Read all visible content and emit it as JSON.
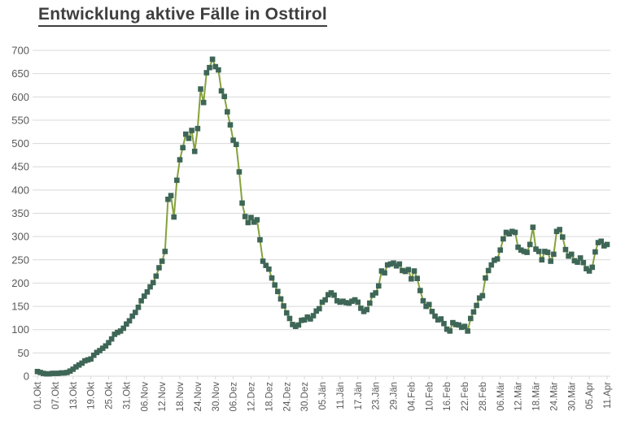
{
  "title": "Entwicklung aktive Fälle in Osttirol",
  "chart_data": {
    "type": "line",
    "title": "Entwicklung aktive Fälle in Osttirol",
    "series_name": "aktive Fälle",
    "legend": "none",
    "grid": "horizontal",
    "marker": "square",
    "line_color": "#85A23B",
    "marker_color": "#3E6657",
    "grid_color": "#D9D9D9",
    "axis_text_color": "#595959",
    "title_color": "#3f3f3f",
    "ylim": [
      0,
      700
    ],
    "y_tick_labels": [
      "0",
      "50",
      "100",
      "150",
      "200",
      "250",
      "300",
      "350",
      "400",
      "450",
      "500",
      "550",
      "600",
      "650",
      "700"
    ],
    "x_tick_step_days": 6,
    "x_tick_labels": [
      "01.Okt",
      "07.Okt",
      "13.Okt",
      "19.Okt",
      "25.Okt",
      "31.Okt",
      "06.Nov",
      "12.Nov",
      "18.Nov",
      "24.Nov",
      "30.Nov",
      "06.Dez",
      "12.Dez",
      "18.Dez",
      "24.Dez",
      "30.Dez",
      "05.Jän",
      "11.Jän",
      "17.Jän",
      "23.Jän",
      "29.Jän",
      "04.Feb",
      "10.Feb",
      "16.Feb",
      "22.Feb",
      "28.Feb",
      "06.Mär",
      "12.Mär",
      "18.Mär",
      "24.Mär",
      "30.Mär",
      "05.Apr",
      "11.Apr"
    ],
    "values": [
      10,
      8,
      6,
      5,
      5,
      6,
      6,
      6,
      7,
      7,
      8,
      11,
      15,
      20,
      24,
      28,
      33,
      35,
      37,
      45,
      51,
      55,
      60,
      65,
      72,
      80,
      90,
      94,
      97,
      103,
      112,
      119,
      129,
      137,
      148,
      162,
      172,
      181,
      192,
      201,
      215,
      233,
      247,
      268,
      380,
      388,
      342,
      421,
      465,
      491,
      520,
      511,
      528,
      483,
      532,
      617,
      588,
      652,
      663,
      681,
      665,
      658,
      613,
      601,
      568,
      540,
      507,
      498,
      439,
      372,
      343,
      330,
      341,
      331,
      336,
      293,
      247,
      238,
      230,
      211,
      196,
      182,
      166,
      151,
      136,
      124,
      111,
      107,
      110,
      120,
      121,
      127,
      123,
      130,
      140,
      145,
      159,
      164,
      175,
      179,
      174,
      162,
      159,
      161,
      158,
      157,
      161,
      164,
      159,
      146,
      139,
      143,
      157,
      174,
      179,
      194,
      226,
      222,
      239,
      241,
      243,
      237,
      241,
      227,
      225,
      229,
      209,
      226,
      210,
      184,
      162,
      150,
      154,
      139,
      129,
      121,
      123,
      113,
      101,
      97,
      115,
      111,
      110,
      105,
      107,
      97,
      124,
      138,
      152,
      168,
      173,
      211,
      227,
      239,
      249,
      252,
      271,
      295,
      309,
      306,
      311,
      309,
      277,
      271,
      268,
      266,
      283,
      320,
      273,
      268,
      250,
      268,
      266,
      247,
      262,
      311,
      315,
      299,
      272,
      258,
      262,
      248,
      245,
      254,
      244,
      231,
      226,
      234,
      267,
      287,
      290,
      280,
      283
    ]
  }
}
